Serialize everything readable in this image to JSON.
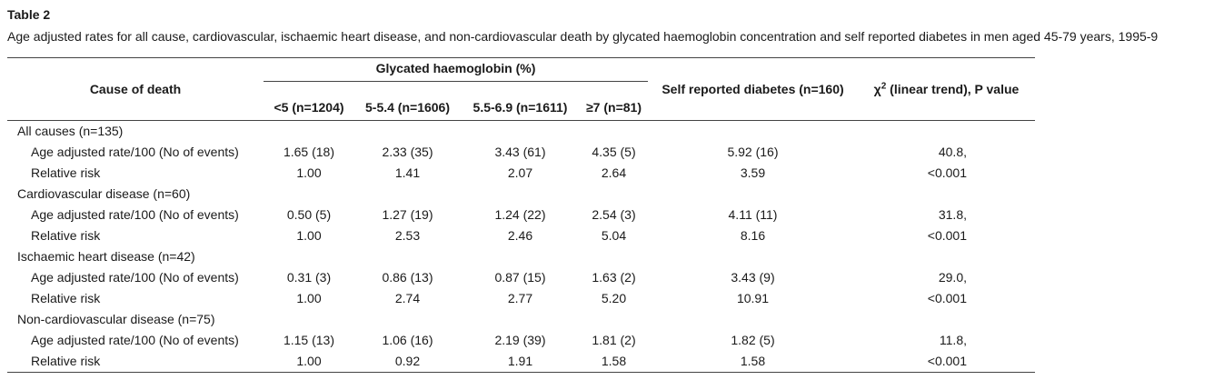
{
  "caption": {
    "label": "Table 2",
    "text": "Age adjusted rates for all cause, cardiovascular, ischaemic heart disease, and non-cardiovascular death by glycated haemoglobin concentration and self reported diabetes in men aged 45-79 years, 1995-9"
  },
  "header": {
    "cause_of_death": "Cause of death",
    "hba1c_group": "Glycated haemoglobin (%)",
    "hba1c_cols": [
      "<5 (n=1204)",
      "5-5.4 (n=1606)",
      "5.5-6.9 (n=1611)",
      "≥7 (n=81)"
    ],
    "diabetes": "Self reported diabetes (n=160)",
    "chi_symbol": "χ",
    "chi_sup": "2",
    "chi_rest": " (linear trend), P value"
  },
  "groups": [
    {
      "title": "All causes (n=135)",
      "rate_label": "Age adjusted rate/100 (No of events)",
      "rates": [
        "1.65 (18)",
        "2.33 (35)",
        "3.43 (61)",
        "4.35 (5)",
        "5.92 (16)"
      ],
      "chi": "40.8,",
      "rr_label": "Relative risk",
      "rr": [
        "1.00",
        "1.41",
        "2.07",
        "2.64",
        "3.59"
      ],
      "p": "<0.001"
    },
    {
      "title": "Cardiovascular disease (n=60)",
      "rate_label": "Age adjusted rate/100 (No of events)",
      "rates": [
        "0.50 (5)",
        "1.27 (19)",
        "1.24 (22)",
        "2.54 (3)",
        "4.11 (11)"
      ],
      "chi": "31.8,",
      "rr_label": "Relative risk",
      "rr": [
        "1.00",
        "2.53",
        "2.46",
        "5.04",
        "8.16"
      ],
      "p": "<0.001"
    },
    {
      "title": "Ischaemic heart disease (n=42)",
      "rate_label": "Age adjusted rate/100 (No of events)",
      "rates": [
        "0.31 (3)",
        "0.86 (13)",
        "0.87 (15)",
        "1.63 (2)",
        "3.43 (9)"
      ],
      "chi": "29.0,",
      "rr_label": "Relative risk",
      "rr": [
        "1.00",
        "2.74",
        "2.77",
        "5.20",
        "10.91"
      ],
      "p": "<0.001"
    },
    {
      "title": "Non-cardiovascular disease (n=75)",
      "rate_label": "Age adjusted rate/100 (No of events)",
      "rates": [
        "1.15 (13)",
        "1.06 (16)",
        "2.19 (39)",
        "1.81 (2)",
        "1.82 (5)"
      ],
      "chi": "11.8,",
      "rr_label": "Relative risk",
      "rr": [
        "1.00",
        "0.92",
        "1.91",
        "1.58",
        "1.58"
      ],
      "p": "<0.001"
    }
  ]
}
